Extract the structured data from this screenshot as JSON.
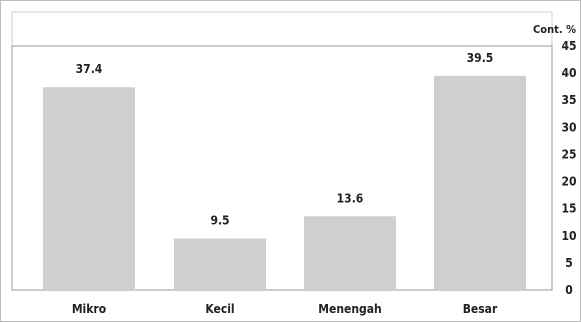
{
  "chart_data": {
    "type": "bar",
    "categories": [
      "Mikro",
      "Kecil",
      "Menengah",
      "Besar"
    ],
    "values": [
      37.4,
      9.5,
      13.6,
      39.5
    ],
    "data_labels": [
      "37.4",
      "9.5",
      "13.6",
      "39.5"
    ],
    "ylabel": "Cont. %",
    "ylim": [
      0,
      45
    ],
    "yticks": [
      "0",
      "5",
      "10",
      "15",
      "20",
      "25",
      "30",
      "35",
      "40",
      "45"
    ],
    "axis_position": "right",
    "grid": false,
    "bar_color": "#cfcfcf"
  }
}
